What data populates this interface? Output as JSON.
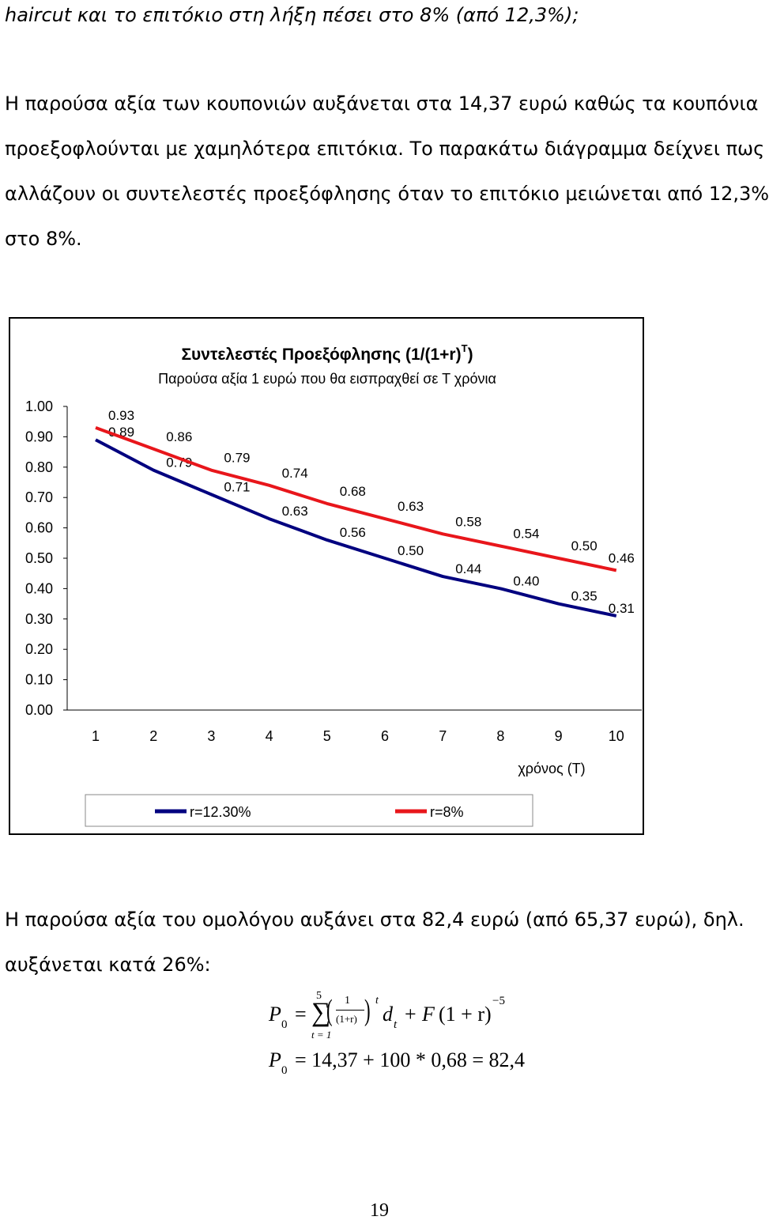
{
  "doc": {
    "lines_top": [
      "haircut και το επιτόκιο στη λήξη πέσει στο 8% (από 12,3%);",
      "Η παρούσα αξία των κουπονιών αυξάνεται στα 14,37 ευρώ καθώς τα κουπόνια",
      "προεξοφλούνται με χαμηλότερα επιτόκια. Το παρακάτω διάγραμμα δείχνει πως",
      "αλλάζουν οι συντελεστές προεξόφλησης όταν το επιτόκιο μειώνεται από 12,3%",
      "στο 8%."
    ],
    "lines_bottom": [
      "Η παρούσα αξία του ομολόγου αυξάνει στα 82,4 ευρώ (από 65,37 ευρώ), δηλ.",
      "αυξάνεται κατά 26%:"
    ],
    "formula1": {
      "lhs": "P",
      "sub": "0",
      "eq": "=",
      "sum_upper": "5",
      "sum_lower": "t = 1",
      "frac_num": "1",
      "frac_den": "(1+r)",
      "pow_t": "t",
      "d": "d",
      "d_sub": "t",
      "plus": "+",
      "F": "F",
      "tail": "(1 + r)",
      "tail_exp": "−5"
    },
    "formula2": {
      "lhs": "P",
      "sub": "0",
      "rhs": "= 14,37 + 100 * 0,68 = 82,4"
    },
    "page_number": "19"
  },
  "chart_data": {
    "type": "line",
    "title": "Συντελεστές Προεξόφλησης (1/(1+r)",
    "title_sup": "T",
    "title_end": ")",
    "subtitle": "Παρούσα αξία 1 ευρώ που θα εισπραχθεί σε Τ  χρόνια",
    "xlabel": "χρόνος (T)",
    "ylabel": "",
    "x": [
      1,
      2,
      3,
      4,
      5,
      6,
      7,
      8,
      9,
      10
    ],
    "y_ticks": [
      "0.00",
      "0.10",
      "0.20",
      "0.30",
      "0.40",
      "0.50",
      "0.60",
      "0.70",
      "0.80",
      "0.90",
      "1.00"
    ],
    "ylim": [
      0,
      1
    ],
    "grid": false,
    "legend_position": "bottom",
    "series": [
      {
        "name": "r=12.30%",
        "color": "#00007f",
        "values": [
          0.89,
          0.79,
          0.71,
          0.63,
          0.56,
          0.5,
          0.44,
          0.4,
          0.35,
          0.31
        ],
        "labels": [
          "0.89",
          "0.79",
          "0.71",
          "0.63",
          "0.56",
          "0.50",
          "0.44",
          "0.40",
          "0.35",
          "0.31"
        ]
      },
      {
        "name": "r=8%",
        "color": "#e8161b",
        "values": [
          0.93,
          0.86,
          0.79,
          0.74,
          0.68,
          0.63,
          0.58,
          0.54,
          0.5,
          0.46
        ],
        "labels": [
          "0.93",
          "0.86",
          "0.79",
          "0.74",
          "0.68",
          "0.63",
          "0.58",
          "0.54",
          "0.50",
          "0.46"
        ]
      }
    ]
  }
}
